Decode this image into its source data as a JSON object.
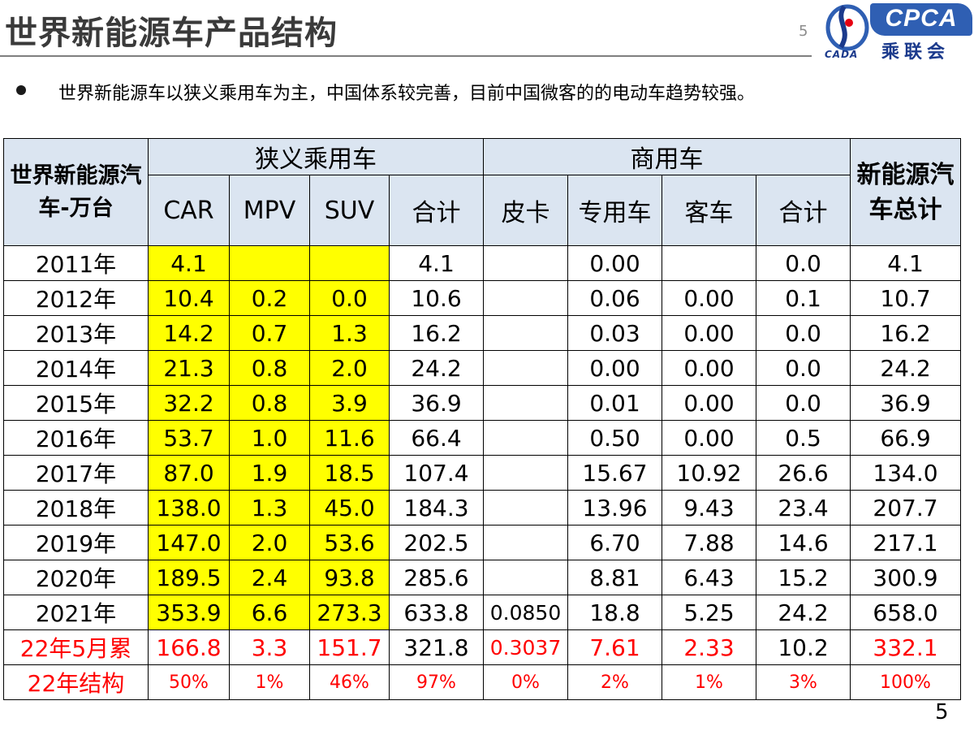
{
  "slide": {
    "title": "世界新能源车产品结构",
    "page_number_top": "5",
    "page_number_bottom": "5",
    "bullet": "世界新能源车以狭义乘用车为主，中国体系较完善，目前中国微客的的电动车趋势较强。"
  },
  "logo": {
    "cada_text": "CADA",
    "cpca_text": "CPCA",
    "cn_text": "乘联会",
    "brand_blue": "#2f5fb3"
  },
  "table": {
    "corner_header": "世界新能源汽车-万台",
    "group_passenger": "狭义乘用车",
    "group_commercial": "商用车",
    "total_header": "新能源汽车总计",
    "sub_headers": [
      "CAR",
      "MPV",
      "SUV",
      "合计",
      "皮卡",
      "专用车",
      "客车",
      "合计"
    ],
    "rows": [
      {
        "label": "2011年",
        "car": "4.1",
        "mpv": "",
        "suv": "",
        "p_total": "4.1",
        "pickup": "",
        "special": "0.00",
        "bus": "",
        "c_total": "0.0",
        "total": "4.1"
      },
      {
        "label": "2012年",
        "car": "10.4",
        "mpv": "0.2",
        "suv": "0.0",
        "p_total": "10.6",
        "pickup": "",
        "special": "0.06",
        "bus": "0.00",
        "c_total": "0.1",
        "total": "10.7"
      },
      {
        "label": "2013年",
        "car": "14.2",
        "mpv": "0.7",
        "suv": "1.3",
        "p_total": "16.2",
        "pickup": "",
        "special": "0.03",
        "bus": "0.00",
        "c_total": "0.0",
        "total": "16.2"
      },
      {
        "label": "2014年",
        "car": "21.3",
        "mpv": "0.8",
        "suv": "2.0",
        "p_total": "24.2",
        "pickup": "",
        "special": "0.00",
        "bus": "0.00",
        "c_total": "0.0",
        "total": "24.2"
      },
      {
        "label": "2015年",
        "car": "32.2",
        "mpv": "0.8",
        "suv": "3.9",
        "p_total": "36.9",
        "pickup": "",
        "special": "0.01",
        "bus": "0.00",
        "c_total": "0.0",
        "total": "36.9"
      },
      {
        "label": "2016年",
        "car": "53.7",
        "mpv": "1.0",
        "suv": "11.6",
        "p_total": "66.4",
        "pickup": "",
        "special": "0.50",
        "bus": "0.00",
        "c_total": "0.5",
        "total": "66.9"
      },
      {
        "label": "2017年",
        "car": "87.0",
        "mpv": "1.9",
        "suv": "18.5",
        "p_total": "107.4",
        "pickup": "",
        "special": "15.67",
        "bus": "10.92",
        "c_total": "26.6",
        "total": "134.0"
      },
      {
        "label": "2018年",
        "car": "138.0",
        "mpv": "1.3",
        "suv": "45.0",
        "p_total": "184.3",
        "pickup": "",
        "special": "13.96",
        "bus": "9.43",
        "c_total": "23.4",
        "total": "207.7"
      },
      {
        "label": "2019年",
        "car": "147.0",
        "mpv": "2.0",
        "suv": "53.6",
        "p_total": "202.5",
        "pickup": "",
        "special": "6.70",
        "bus": "7.88",
        "c_total": "14.6",
        "total": "217.1"
      },
      {
        "label": "2020年",
        "car": "189.5",
        "mpv": "2.4",
        "suv": "93.8",
        "p_total": "285.6",
        "pickup": "",
        "special": "8.81",
        "bus": "6.43",
        "c_total": "15.2",
        "total": "300.9"
      },
      {
        "label": "2021年",
        "car": "353.9",
        "mpv": "6.6",
        "suv": "273.3",
        "p_total": "633.8",
        "pickup": "0.0850",
        "special": "18.8",
        "bus": "5.25",
        "c_total": "24.2",
        "total": "658.0"
      }
    ],
    "ytd_row": {
      "label": "22年5月累",
      "car": "166.8",
      "mpv": "3.3",
      "suv": "151.7",
      "p_total": "321.8",
      "pickup": "0.3037",
      "special": "7.61",
      "bus": "2.33",
      "c_total": "10.2",
      "total": "332.1"
    },
    "structure_row": {
      "label": "22年结构",
      "car": "50%",
      "mpv": "1%",
      "suv": "46%",
      "p_total": "97%",
      "pickup": "0%",
      "special": "2%",
      "bus": "1%",
      "c_total": "3%",
      "total": "100%"
    },
    "colors": {
      "header_bg": "#dbe5f1",
      "highlight": "#ffff00",
      "red_text": "#ff0000"
    }
  }
}
